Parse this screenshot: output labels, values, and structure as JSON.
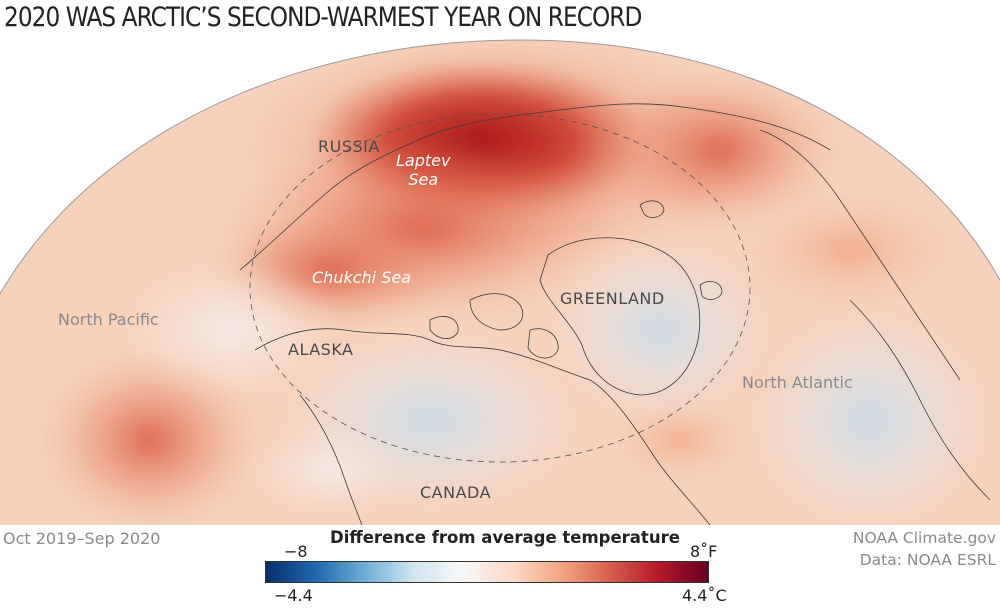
{
  "title": "2020 WAS ARCTIC’S SECOND-WARMEST YEAR ON RECORD",
  "period": "Oct 2019–Sep 2020",
  "labels": {
    "russia": "Russia",
    "laptev_line1": "Laptev",
    "laptev_line2": "Sea",
    "chukchi": "Chukchi Sea",
    "greenland": "Greenland",
    "alaska": "Alaska",
    "canada": "Canada",
    "north_pacific": "North Pacific",
    "north_atlantic": "North Atlantic"
  },
  "legend": {
    "title": "Difference from average temperature",
    "f_min": "−8",
    "f_max": "8˚F",
    "c_min": "−4.4",
    "c_max": "4.4˚C",
    "colors": [
      "#08306b",
      "#2166ac",
      "#6baed6",
      "#d1e5f0",
      "#f7f7f7",
      "#fddbc7",
      "#f4a582",
      "#d6604d",
      "#b2182b",
      "#67001f"
    ]
  },
  "credit": {
    "line1": "NOAA Climate.gov",
    "line2": "Data: NOAA ESRL"
  }
}
